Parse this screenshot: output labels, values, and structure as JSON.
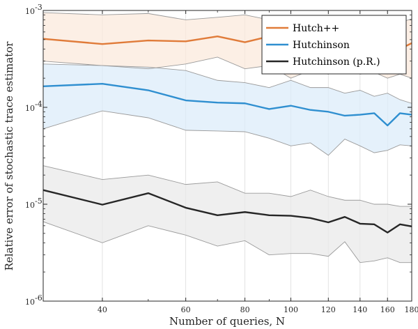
{
  "chart_data": {
    "type": "line",
    "xlabel": "Number of queries, N",
    "ylabel": "Relative error of stochastic trace estimator",
    "xscale": "log",
    "yscale": "log",
    "xlim": [
      30,
      180
    ],
    "ylim": [
      1e-06,
      0.001
    ],
    "x_ticks": [
      40,
      60,
      80,
      100,
      120,
      140,
      160,
      180
    ],
    "y_ticks": [
      {
        "value": 1e-06,
        "label": "10",
        "exp": "-6"
      },
      {
        "value": 1e-05,
        "label": "10",
        "exp": "-5"
      },
      {
        "value": 0.0001,
        "label": "10",
        "exp": "-4"
      },
      {
        "value": 0.001,
        "label": "10",
        "exp": "-3"
      }
    ],
    "grid": "x-major",
    "legend_position": "top-right",
    "x": [
      30,
      40,
      50,
      60,
      70,
      80,
      90,
      100,
      110,
      120,
      130,
      140,
      150,
      160,
      170,
      180
    ],
    "series": [
      {
        "name": "Hutch++",
        "color": "#e07b39",
        "band_color": "#fbe9dc",
        "values": [
          0.00051,
          0.00045,
          0.00049,
          0.00048,
          0.00054,
          0.00047,
          0.00054,
          0.00046,
          0.00045,
          0.0005,
          0.00044,
          0.00046,
          0.00045,
          0.00043,
          0.0004,
          0.00046
        ],
        "upper": [
          0.00095,
          0.0009,
          0.00093,
          0.0008,
          0.00085,
          0.0009,
          0.0008,
          0.00088,
          0.00083,
          0.0008,
          0.0008,
          0.00085,
          0.00087,
          0.00075,
          0.00075,
          0.00082
        ],
        "lower": [
          0.0003,
          0.00027,
          0.00025,
          0.00028,
          0.00033,
          0.00025,
          0.00027,
          0.0002,
          0.00024,
          0.00022,
          0.00025,
          0.00022,
          0.00023,
          0.0002,
          0.00022,
          0.0002
        ]
      },
      {
        "name": "Hutchinson",
        "color": "#2f8fd0",
        "band_color": "#dcecfa",
        "values": [
          0.000165,
          0.000175,
          0.00015,
          0.000118,
          0.000112,
          0.00011,
          9.6e-05,
          0.000104,
          9.4e-05,
          9e-05,
          8.2e-05,
          8.4e-05,
          8.7e-05,
          6.5e-05,
          8.7e-05,
          8.4e-05
        ],
        "upper": [
          0.00028,
          0.00027,
          0.00026,
          0.00024,
          0.00019,
          0.00018,
          0.00016,
          0.00019,
          0.00016,
          0.00016,
          0.00014,
          0.00015,
          0.00013,
          0.00014,
          0.00012,
          0.00011
        ],
        "lower": [
          6e-05,
          9.2e-05,
          7.8e-05,
          5.8e-05,
          5.7e-05,
          5.6e-05,
          4.8e-05,
          4e-05,
          4.3e-05,
          3.2e-05,
          4.7e-05,
          4e-05,
          3.4e-05,
          3.6e-05,
          4.1e-05,
          4e-05
        ]
      },
      {
        "name": "Hutchinson (p.R.)",
        "color": "#262626",
        "band_color": "#e9e9e9",
        "values": [
          1.4e-05,
          9.9e-06,
          1.3e-05,
          9.2e-06,
          7.7e-06,
          8.3e-06,
          7.7e-06,
          7.6e-06,
          7.2e-06,
          6.5e-06,
          7.4e-06,
          6.3e-06,
          6.2e-06,
          5.1e-06,
          6.2e-06,
          5.9e-06
        ],
        "upper": [
          2.5e-05,
          1.8e-05,
          2e-05,
          1.6e-05,
          1.7e-05,
          1.3e-05,
          1.3e-05,
          1.2e-05,
          1.4e-05,
          1.2e-05,
          1.1e-05,
          1.1e-05,
          1e-05,
          1e-05,
          9.5e-06,
          9.5e-06
        ],
        "lower": [
          6.6e-06,
          4e-06,
          6e-06,
          4.8e-06,
          3.7e-06,
          4.2e-06,
          3e-06,
          3.1e-06,
          3.1e-06,
          2.9e-06,
          4.1e-06,
          2.5e-06,
          2.6e-06,
          2.8e-06,
          2.5e-06,
          2.5e-06
        ]
      }
    ]
  }
}
